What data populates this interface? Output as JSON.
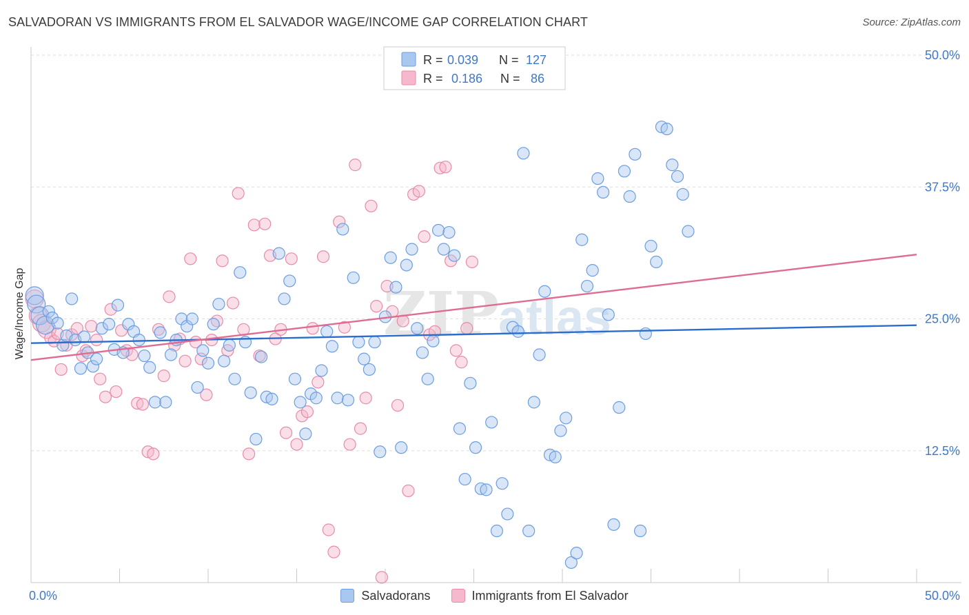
{
  "title": "SALVADORAN VS IMMIGRANTS FROM EL SALVADOR WAGE/INCOME GAP CORRELATION CHART",
  "source": "Source: ZipAtlas.com",
  "watermark": {
    "zip": "ZIP",
    "atlas": "atlas"
  },
  "colors": {
    "blue_fill": "#a8c8f0",
    "blue_stroke": "#6b9de0",
    "blue_line": "#2a6dcc",
    "pink_fill": "#f5b8cc",
    "pink_stroke": "#e88aa8",
    "pink_line": "#e06a90",
    "axis_text": "#3f78c7",
    "grid": "#dddddd"
  },
  "legend_box": {
    "rows": [
      {
        "r_label": "R =",
        "r_value": "0.039",
        "n_label": "N =",
        "n_value": "127",
        "series": "blue"
      },
      {
        "r_label": "R =",
        "r_value": "0.186",
        "n_label": "N =",
        "n_value": "86",
        "series": "pink"
      }
    ]
  },
  "chart_data": {
    "type": "scatter",
    "title": "SALVADORAN VS IMMIGRANTS FROM EL SALVADOR WAGE/INCOME GAP CORRELATION CHART",
    "ylabel": "Wage/Income Gap",
    "xlabel": "",
    "xlim": [
      0,
      50
    ],
    "ylim": [
      0,
      50
    ],
    "x_tick_labels": [
      "0.0%",
      "50.0%"
    ],
    "y_tick_values": [
      12.5,
      25.0,
      37.5,
      50.0
    ],
    "y_tick_labels": [
      "12.5%",
      "25.0%",
      "37.5%",
      "50.0%"
    ],
    "grid": "horizontal dashed",
    "legend_position": "bottom",
    "series": [
      {
        "name": "Salvadorans",
        "color": "blue",
        "r": 0.039,
        "n": 127,
        "trend": {
          "x": [
            0,
            50
          ],
          "y": [
            22.7,
            24.4
          ]
        },
        "points": [
          [
            0.2,
            27.2
          ],
          [
            0.3,
            26.4
          ],
          [
            0.5,
            25.3
          ],
          [
            0.8,
            24.4
          ],
          [
            1.0,
            25.7
          ],
          [
            1.2,
            25.1
          ],
          [
            1.5,
            24.6
          ],
          [
            1.8,
            22.5
          ],
          [
            2.0,
            23.4
          ],
          [
            2.3,
            26.9
          ],
          [
            2.5,
            23.0
          ],
          [
            2.8,
            20.3
          ],
          [
            3.0,
            23.3
          ],
          [
            3.2,
            21.8
          ],
          [
            3.5,
            20.5
          ],
          [
            3.7,
            21.2
          ],
          [
            4.0,
            24.1
          ],
          [
            4.4,
            24.5
          ],
          [
            4.7,
            22.1
          ],
          [
            4.9,
            26.3
          ],
          [
            5.2,
            21.8
          ],
          [
            5.5,
            24.5
          ],
          [
            5.8,
            23.8
          ],
          [
            6.1,
            23.0
          ],
          [
            6.4,
            21.5
          ],
          [
            6.7,
            20.4
          ],
          [
            7.0,
            17.1
          ],
          [
            7.3,
            23.7
          ],
          [
            7.6,
            17.1
          ],
          [
            7.9,
            21.6
          ],
          [
            8.2,
            23.0
          ],
          [
            8.5,
            25.0
          ],
          [
            8.8,
            24.3
          ],
          [
            9.1,
            25.0
          ],
          [
            9.4,
            18.5
          ],
          [
            9.7,
            22.0
          ],
          [
            10.0,
            20.8
          ],
          [
            10.3,
            24.5
          ],
          [
            10.6,
            26.4
          ],
          [
            10.9,
            21.0
          ],
          [
            11.2,
            22.5
          ],
          [
            11.5,
            19.3
          ],
          [
            11.8,
            29.4
          ],
          [
            12.1,
            22.8
          ],
          [
            12.4,
            18.0
          ],
          [
            12.7,
            13.6
          ],
          [
            13.0,
            21.4
          ],
          [
            13.3,
            17.6
          ],
          [
            13.6,
            17.4
          ],
          [
            14.0,
            31.2
          ],
          [
            14.3,
            26.9
          ],
          [
            14.6,
            28.6
          ],
          [
            14.9,
            19.3
          ],
          [
            15.2,
            17.1
          ],
          [
            15.5,
            14.1
          ],
          [
            15.8,
            17.9
          ],
          [
            16.1,
            17.5
          ],
          [
            16.4,
            20.1
          ],
          [
            16.7,
            23.8
          ],
          [
            17.0,
            22.4
          ],
          [
            17.3,
            17.5
          ],
          [
            17.6,
            33.5
          ],
          [
            17.9,
            17.3
          ],
          [
            18.2,
            28.9
          ],
          [
            18.5,
            22.8
          ],
          [
            18.8,
            21.2
          ],
          [
            19.1,
            20.2
          ],
          [
            19.4,
            22.8
          ],
          [
            19.7,
            12.4
          ],
          [
            20.0,
            25.2
          ],
          [
            20.3,
            30.8
          ],
          [
            20.6,
            28.0
          ],
          [
            20.9,
            12.8
          ],
          [
            21.2,
            30.1
          ],
          [
            21.5,
            31.6
          ],
          [
            21.8,
            24.1
          ],
          [
            22.1,
            21.8
          ],
          [
            22.4,
            19.3
          ],
          [
            22.7,
            22.9
          ],
          [
            23.0,
            33.4
          ],
          [
            23.3,
            31.6
          ],
          [
            23.6,
            33.2
          ],
          [
            23.9,
            31.0
          ],
          [
            24.2,
            14.6
          ],
          [
            24.5,
            9.8
          ],
          [
            24.8,
            18.9
          ],
          [
            25.1,
            12.8
          ],
          [
            25.4,
            8.9
          ],
          [
            25.7,
            8.8
          ],
          [
            26.0,
            15.2
          ],
          [
            26.3,
            4.9
          ],
          [
            26.6,
            9.4
          ],
          [
            26.9,
            6.5
          ],
          [
            27.2,
            24.2
          ],
          [
            27.5,
            23.8
          ],
          [
            27.8,
            40.7
          ],
          [
            28.1,
            4.9
          ],
          [
            28.4,
            17.1
          ],
          [
            28.7,
            21.6
          ],
          [
            29.0,
            27.6
          ],
          [
            29.3,
            12.1
          ],
          [
            29.6,
            11.9
          ],
          [
            29.9,
            14.4
          ],
          [
            30.2,
            15.6
          ],
          [
            30.5,
            1.9
          ],
          [
            30.8,
            2.8
          ],
          [
            31.1,
            32.5
          ],
          [
            31.4,
            28.1
          ],
          [
            31.7,
            29.6
          ],
          [
            32.0,
            38.3
          ],
          [
            32.3,
            37.0
          ],
          [
            32.6,
            25.4
          ],
          [
            32.9,
            5.5
          ],
          [
            33.2,
            16.6
          ],
          [
            33.5,
            39.0
          ],
          [
            33.8,
            36.6
          ],
          [
            34.1,
            40.6
          ],
          [
            34.4,
            4.9
          ],
          [
            34.7,
            23.6
          ],
          [
            35.0,
            31.9
          ],
          [
            35.3,
            30.4
          ],
          [
            35.6,
            43.2
          ],
          [
            35.9,
            43.0
          ],
          [
            36.2,
            39.6
          ],
          [
            36.5,
            38.5
          ],
          [
            36.8,
            36.8
          ],
          [
            37.1,
            33.3
          ]
        ]
      },
      {
        "name": "Immigrants from El Salvador",
        "color": "pink",
        "r": 0.186,
        "n": 86,
        "trend": {
          "x": [
            0,
            50
          ],
          "y": [
            21.1,
            31.1
          ]
        },
        "points": [
          [
            0.2,
            26.9
          ],
          [
            0.4,
            25.3
          ],
          [
            0.6,
            24.6
          ],
          [
            0.9,
            24.0
          ],
          [
            1.1,
            23.2
          ],
          [
            1.3,
            22.9
          ],
          [
            1.5,
            23.6
          ],
          [
            1.7,
            20.2
          ],
          [
            2.0,
            22.5
          ],
          [
            2.3,
            23.5
          ],
          [
            2.6,
            24.1
          ],
          [
            2.9,
            21.5
          ],
          [
            3.1,
            22.0
          ],
          [
            3.4,
            24.3
          ],
          [
            3.7,
            23.0
          ],
          [
            3.9,
            19.3
          ],
          [
            4.2,
            17.6
          ],
          [
            4.5,
            25.9
          ],
          [
            4.8,
            18.1
          ],
          [
            5.1,
            23.9
          ],
          [
            5.4,
            22.0
          ],
          [
            5.7,
            21.6
          ],
          [
            6.0,
            17.0
          ],
          [
            6.3,
            16.9
          ],
          [
            6.6,
            12.4
          ],
          [
            6.9,
            12.2
          ],
          [
            7.2,
            24.0
          ],
          [
            7.5,
            19.6
          ],
          [
            7.8,
            27.1
          ],
          [
            8.1,
            22.5
          ],
          [
            8.4,
            23.1
          ],
          [
            8.7,
            21.0
          ],
          [
            9.0,
            30.7
          ],
          [
            9.3,
            22.8
          ],
          [
            9.6,
            21.2
          ],
          [
            9.9,
            17.8
          ],
          [
            10.2,
            23.0
          ],
          [
            10.5,
            24.8
          ],
          [
            10.8,
            30.5
          ],
          [
            11.1,
            22.0
          ],
          [
            11.4,
            26.5
          ],
          [
            11.7,
            36.9
          ],
          [
            12.0,
            24.0
          ],
          [
            12.3,
            12.2
          ],
          [
            12.6,
            33.9
          ],
          [
            12.9,
            21.5
          ],
          [
            13.2,
            34.0
          ],
          [
            13.5,
            31.0
          ],
          [
            13.8,
            23.1
          ],
          [
            14.1,
            24.0
          ],
          [
            14.4,
            14.2
          ],
          [
            14.7,
            30.7
          ],
          [
            15.0,
            13.1
          ],
          [
            15.3,
            15.8
          ],
          [
            15.6,
            16.2
          ],
          [
            15.9,
            24.1
          ],
          [
            16.2,
            19.0
          ],
          [
            16.5,
            30.9
          ],
          [
            16.8,
            5.0
          ],
          [
            17.1,
            2.9
          ],
          [
            17.4,
            34.2
          ],
          [
            17.7,
            24.2
          ],
          [
            18.0,
            13.1
          ],
          [
            18.3,
            39.6
          ],
          [
            18.6,
            14.6
          ],
          [
            18.9,
            17.5
          ],
          [
            19.2,
            35.7
          ],
          [
            19.5,
            26.2
          ],
          [
            19.8,
            0.5
          ],
          [
            20.1,
            28.1
          ],
          [
            20.4,
            25.7
          ],
          [
            20.7,
            16.8
          ],
          [
            21.0,
            24.8
          ],
          [
            21.3,
            8.7
          ],
          [
            21.6,
            36.8
          ],
          [
            21.9,
            37.1
          ],
          [
            22.2,
            32.8
          ],
          [
            22.5,
            23.5
          ],
          [
            22.8,
            23.8
          ],
          [
            23.1,
            39.3
          ],
          [
            23.4,
            39.4
          ],
          [
            23.7,
            30.5
          ],
          [
            24.0,
            22.0
          ],
          [
            24.3,
            20.9
          ],
          [
            24.6,
            24.1
          ],
          [
            24.9,
            30.4
          ]
        ]
      }
    ]
  },
  "bottom_legend": [
    {
      "label": "Salvadorans",
      "series": "blue"
    },
    {
      "label": "Immigrants from El Salvador",
      "series": "pink"
    }
  ]
}
